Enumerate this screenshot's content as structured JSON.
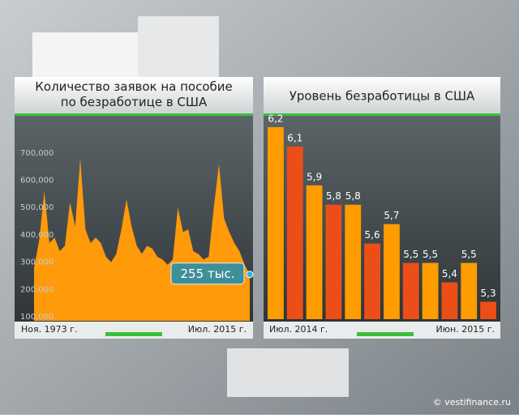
{
  "chart_data": [
    {
      "type": "area",
      "title": "Количество заявок на пособие по безработице в США",
      "color": "#ff9a0a",
      "categories": [
        "Ноя. 1973 г.",
        null,
        null,
        null,
        null,
        null,
        null,
        null,
        null,
        null,
        null,
        null,
        null,
        null,
        null,
        null,
        null,
        null,
        null,
        null,
        null,
        null,
        null,
        null,
        null,
        null,
        null,
        null,
        null,
        null,
        null,
        null,
        null,
        null,
        null,
        null,
        null,
        null,
        null,
        null,
        null,
        null,
        "Июл. 2015 г."
      ],
      "values": [
        280000,
        380000,
        560000,
        370000,
        390000,
        340000,
        360000,
        520000,
        430000,
        680000,
        420000,
        370000,
        390000,
        370000,
        320000,
        300000,
        330000,
        420000,
        530000,
        430000,
        360000,
        330000,
        360000,
        350000,
        320000,
        310000,
        290000,
        310000,
        500000,
        410000,
        420000,
        340000,
        330000,
        310000,
        320000,
        500000,
        660000,
        460000,
        410000,
        370000,
        340000,
        290000,
        255000
      ],
      "ylim": [
        85000,
        830000
      ],
      "yticks": [
        {
          "value": 100000,
          "label": "100,000"
        },
        {
          "value": 200000,
          "label": "200,000"
        },
        {
          "value": 300000,
          "label": "300,000"
        },
        {
          "value": 400000,
          "label": "400,000"
        },
        {
          "value": 500000,
          "label": "500,000"
        },
        {
          "value": 600000,
          "label": "600,000"
        },
        {
          "value": 700000,
          "label": "700,000"
        }
      ],
      "annotation": "255 тыс.",
      "grid": false
    },
    {
      "type": "bar",
      "title": "Уровень безработицы в США",
      "categories": [
        "Июл. 2014 г.",
        null,
        null,
        null,
        null,
        null,
        null,
        null,
        null,
        null,
        null,
        "Июн. 2015 г."
      ],
      "values": [
        6.2,
        6.1,
        5.9,
        5.8,
        5.8,
        5.6,
        5.7,
        5.5,
        5.5,
        5.4,
        5.5,
        5.3
      ],
      "value_labels": [
        "6,2",
        "6,1",
        "5,9",
        "5,8",
        "5,8",
        "5,6",
        "5,7",
        "5,5",
        "5,5",
        "5,4",
        "5,5",
        "5,3"
      ],
      "colors": [
        "#ff9c00",
        "#ec4e18",
        "#ff9c00",
        "#ec4e18",
        "#ff9c00",
        "#ec4e18",
        "#ff9c00",
        "#ec4e18",
        "#ff9c00",
        "#ec4e18",
        "#ff9c00",
        "#ec4e18"
      ],
      "ylim": [
        5.21,
        6.25
      ],
      "grid": false
    }
  ],
  "watermark": "© vestifinance.ru"
}
